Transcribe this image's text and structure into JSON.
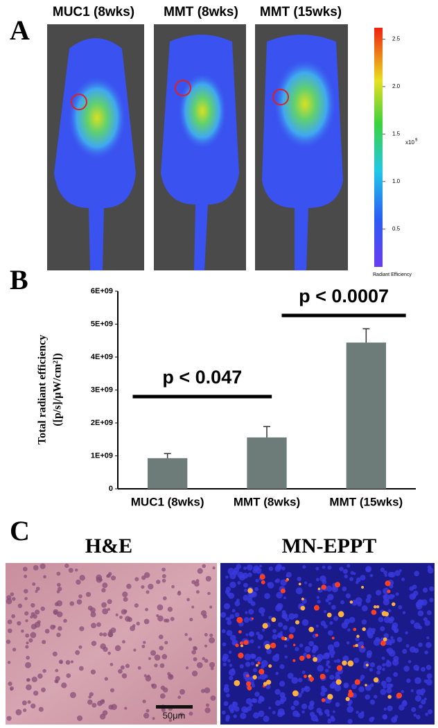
{
  "panel_labels": [
    "A",
    "B",
    "C"
  ],
  "imaging": {
    "titles": [
      "MUC1 (8wks)",
      "MMT (8wks)",
      "MMT (15wks)"
    ],
    "colorbar": {
      "ylim": [
        0.1,
        2.62
      ],
      "ticks": [
        0.5,
        {
          "value": 1,
          "label": "1.0"
        },
        1.5,
        {
          "value": 2,
          "label": "2.0"
        },
        2.5
      ],
      "unit": "x10",
      "exponent": "9",
      "label": "Radiant Efficiency"
    }
  },
  "chart_data": {
    "type": "bar",
    "categories": [
      "MUC1 (8wks)",
      "MMT (8wks)",
      "MMT (15wks)"
    ],
    "values": [
      930000000,
      1560000000,
      4440000000
    ],
    "errors": [
      140000000,
      330000000,
      420000000
    ],
    "color": "#6e7c79",
    "ylabel": [
      "Total radiant efficiency",
      "([p/s]/μW/cm²])"
    ],
    "ylim": [
      0,
      6000000000
    ],
    "yticks": [
      0,
      {
        "value": 1000000000,
        "label": "1E+09"
      },
      {
        "value": 2000000000,
        "label": "2E+09"
      },
      {
        "value": 3000000000,
        "label": "3E+09"
      },
      {
        "value": 4000000000,
        "label": "4E+09"
      },
      {
        "value": 5000000000,
        "label": "5E+09"
      },
      {
        "value": 6000000000,
        "label": "6E+09"
      }
    ],
    "annotations": [
      "p < 0.047",
      "p < 0.0007"
    ]
  },
  "histology": {
    "titles": [
      "H&E",
      "MN-EPPT"
    ],
    "scale_bar": "50μm"
  }
}
